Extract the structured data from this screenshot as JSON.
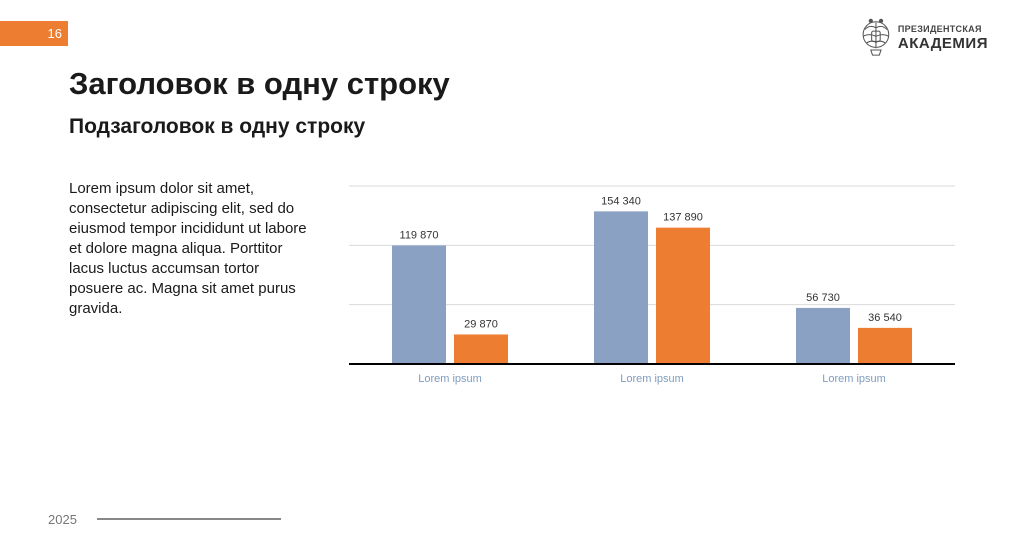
{
  "slide": {
    "page_number": "16",
    "title": "Заголовок в одну строку",
    "subtitle": "Подзаголовок в одну строку",
    "body": "Lorem ipsum dolor sit amet, consectetur adipiscing elit, sed do eiusmod tempor incididunt ut labore et dolore magna aliqua. Porttitor lacus luctus accumsan tortor posuere ac. Magna sit amet purus gravida.",
    "year": "2025"
  },
  "logo": {
    "line1": "ПРЕЗИДЕНТСКАЯ",
    "line2": "АКАДЕМИЯ"
  },
  "colors": {
    "accent": "#ED7D31",
    "series_blue": "#8BA1C4",
    "series_orange": "#ED7D31",
    "gridline": "#D9D9D9",
    "axis": "#000000",
    "category_label": "#7F9CC0"
  },
  "chart_data": {
    "type": "bar",
    "categories": [
      "Lorem ipsum",
      "Lorem ipsum",
      "Lorem ipsum"
    ],
    "series": [
      {
        "values": [
          119870,
          154340,
          56730
        ],
        "labels": [
          "119 870",
          "154 340",
          "56 730"
        ],
        "color": "#8BA1C4"
      },
      {
        "values": [
          29870,
          137890,
          36540
        ],
        "labels": [
          "29 870",
          "137 890",
          "36 540"
        ],
        "color": "#ED7D31"
      }
    ],
    "ylim": [
      0,
      180000
    ],
    "grid": true,
    "legend": "none"
  }
}
